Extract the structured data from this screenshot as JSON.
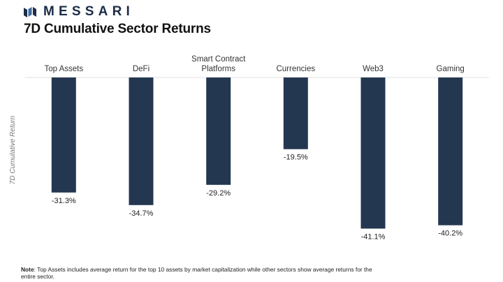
{
  "brand": {
    "name": "MESSARI",
    "logo_icon": "messari-logo-icon",
    "color": "#1b2d47"
  },
  "title": "7D Cumulative Sector Returns",
  "note": {
    "label": "Note",
    "text": ": Top Assets includes average return for the top 10 assets by market capitalization while other sectors show average returns for the entire sector."
  },
  "chart_data": {
    "type": "bar",
    "orientation": "vertical",
    "title": "7D Cumulative Sector Returns",
    "ylabel": "7D Cumulative Return",
    "xlabel": "",
    "categories": [
      [
        "Top Assets"
      ],
      [
        "DeFi"
      ],
      [
        "Smart Contract",
        "Platforms"
      ],
      [
        "Currencies"
      ],
      [
        "Web3"
      ],
      [
        "Gaming"
      ]
    ],
    "values": [
      -31.3,
      -34.7,
      -29.2,
      -19.5,
      -41.1,
      -40.2
    ],
    "value_labels": [
      "-31.3%",
      "-34.7%",
      "-29.2%",
      "-19.5%",
      "-41.1%",
      "-40.2%"
    ],
    "ylim": [
      -45,
      0
    ],
    "category_axis_position": "top",
    "grid": false,
    "legend": false,
    "bar_color": "#243750",
    "axis_line_color": "#e2e2e2"
  }
}
